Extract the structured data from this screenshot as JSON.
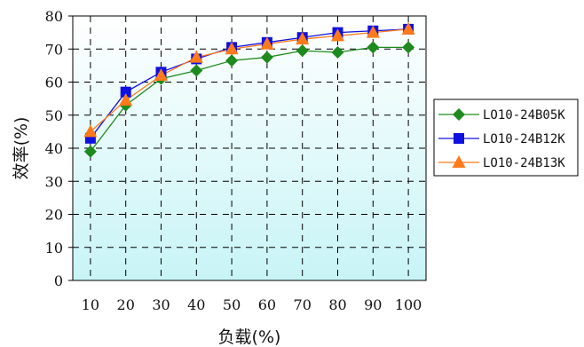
{
  "chart_data": {
    "type": "line",
    "x": [
      10,
      20,
      30,
      40,
      50,
      60,
      70,
      80,
      90,
      100
    ],
    "xlabel": "负载(%)",
    "ylabel": "效率(%)",
    "xticks": [
      "10",
      "20",
      "30",
      "40",
      "50",
      "60",
      "70",
      "80",
      "90",
      "100"
    ],
    "yticks": [
      "0",
      "10",
      "20",
      "30",
      "40",
      "50",
      "60",
      "70",
      "80"
    ],
    "ylim": [
      0,
      80
    ],
    "grid": true,
    "legend_position": "right",
    "series": [
      {
        "name": "LO10-24B05K",
        "color": "#1e8a1e",
        "marker": "diamond",
        "values": [
          39.0,
          53.0,
          61.0,
          63.5,
          66.5,
          67.5,
          69.5,
          69.0,
          70.5,
          70.5
        ]
      },
      {
        "name": "LO10-24B12K",
        "color": "#1010e0",
        "marker": "square",
        "values": [
          43.0,
          57.0,
          63.0,
          67.0,
          70.5,
          72.0,
          73.5,
          75.0,
          75.5,
          76.0
        ]
      },
      {
        "name": "LO10-24B13K",
        "color": "#ff7a1a",
        "marker": "triangle",
        "values": [
          45.0,
          54.5,
          62.0,
          67.5,
          70.0,
          71.5,
          73.0,
          74.0,
          75.0,
          76.0
        ]
      }
    ]
  }
}
